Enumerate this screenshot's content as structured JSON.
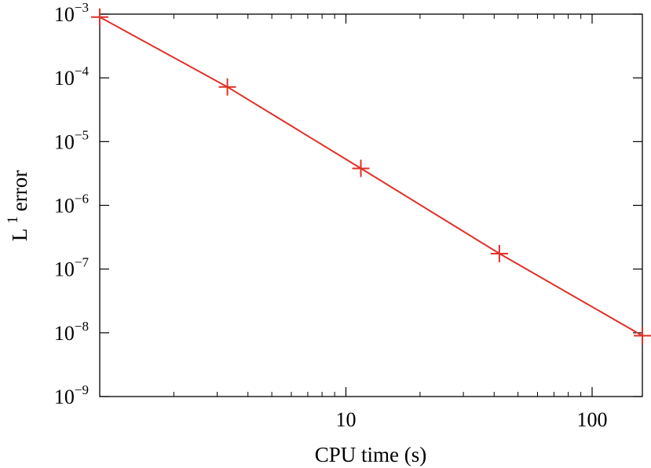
{
  "chart_data": {
    "type": "line",
    "xlabel": "CPU time (s)",
    "ylabel": {
      "base": "L",
      "sup": "1",
      "rest": "error"
    },
    "x_scale": "log",
    "y_scale": "log",
    "xlim": [
      1.0,
      160
    ],
    "ylim": [
      1e-09,
      0.001
    ],
    "grid": false,
    "line_color": "#e03127",
    "marker": "plus",
    "x_ticks": [
      {
        "value": 10,
        "label": "10"
      },
      {
        "value": 100,
        "label": "100"
      }
    ],
    "y_ticks": [
      {
        "value": 0.001,
        "base": "10",
        "exp": "−3"
      },
      {
        "value": 0.0001,
        "base": "10",
        "exp": "−4"
      },
      {
        "value": 1e-05,
        "base": "10",
        "exp": "−5"
      },
      {
        "value": 1e-06,
        "base": "10",
        "exp": "−6"
      },
      {
        "value": 1e-07,
        "base": "10",
        "exp": "−7"
      },
      {
        "value": 1e-08,
        "base": "10",
        "exp": "−8"
      },
      {
        "value": 1e-09,
        "base": "10",
        "exp": "−9"
      }
    ],
    "series": [
      {
        "x": [
          1.0,
          3.3,
          11.5,
          42,
          160
        ],
        "y": [
          0.0009,
          7.2e-05,
          3.8e-06,
          1.75e-07,
          9e-09
        ]
      }
    ]
  }
}
